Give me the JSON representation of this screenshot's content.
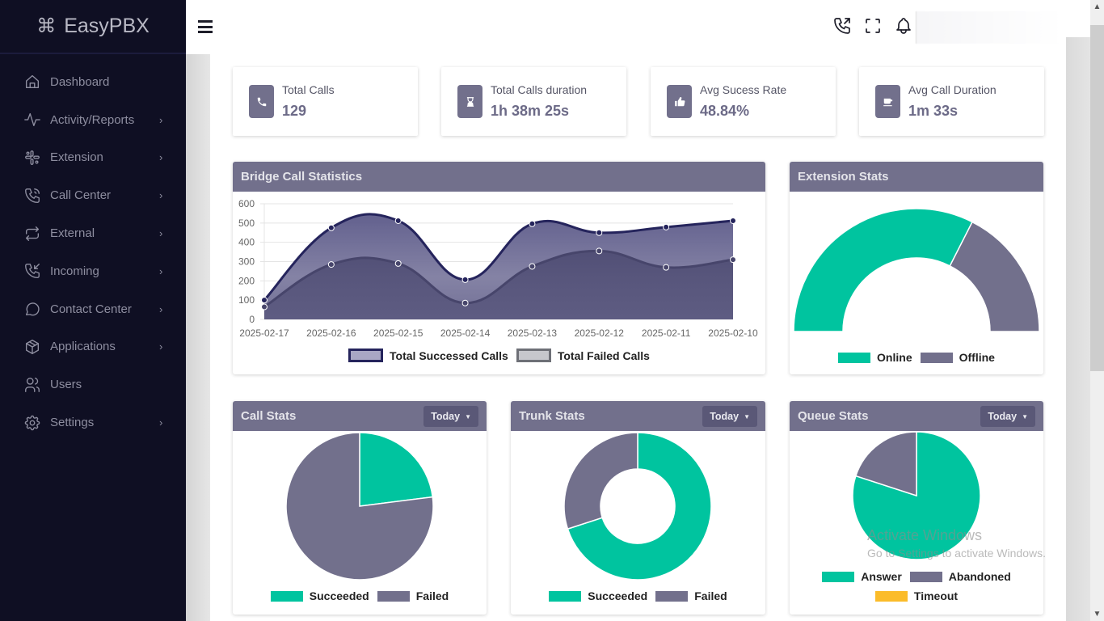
{
  "app": {
    "brand": "EasyPBX",
    "brand_icon": "command-icon"
  },
  "sidebar": {
    "items": [
      {
        "label": "Dashboard",
        "icon": "home-icon",
        "has_children": false
      },
      {
        "label": "Activity/Reports",
        "icon": "activity-icon",
        "has_children": true
      },
      {
        "label": "Extension",
        "icon": "extension-icon",
        "has_children": true
      },
      {
        "label": "Call Center",
        "icon": "phone-ringing-icon",
        "has_children": true
      },
      {
        "label": "External",
        "icon": "repeat-icon",
        "has_children": true
      },
      {
        "label": "Incoming",
        "icon": "phone-incoming-icon",
        "has_children": true
      },
      {
        "label": "Contact Center",
        "icon": "chat-bubble-icon",
        "has_children": true
      },
      {
        "label": "Applications",
        "icon": "box-icon",
        "has_children": true
      },
      {
        "label": "Users",
        "icon": "users-icon",
        "has_children": false
      },
      {
        "label": "Settings",
        "icon": "gear-icon",
        "has_children": true
      }
    ],
    "chevron": "›"
  },
  "topbar": {
    "icons": [
      "phone-outgoing-icon",
      "fullscreen-icon",
      "bell-icon"
    ]
  },
  "stats": [
    {
      "label": "Total Calls",
      "value": "129",
      "icon": "phone-icon"
    },
    {
      "label": "Total Calls duration",
      "value": "1h 38m 25s",
      "icon": "hourglass-icon"
    },
    {
      "label": "Avg Sucess Rate",
      "value": "48.84%",
      "icon": "thumbs-up-icon"
    },
    {
      "label": "Avg Call Duration",
      "value": "1m 33s",
      "icon": "coffee-icon"
    }
  ],
  "colors": {
    "accent": "#72708c",
    "green": "#00c49f",
    "slate": "#72708c",
    "yellow": "#fbbc2a",
    "line_dark": "#25245c"
  },
  "dropdown_label": "Today",
  "chart_data": [
    {
      "id": "bridge",
      "type": "area",
      "title": "Bridge Call Statistics",
      "categories": [
        "2025-02-17",
        "2025-02-16",
        "2025-02-15",
        "2025-02-14",
        "2025-02-13",
        "2025-02-12",
        "2025-02-11",
        "2025-02-10"
      ],
      "series": [
        {
          "name": "Total Successed Calls",
          "values": [
            100,
            475,
            512,
            206,
            496,
            450,
            479,
            512
          ]
        },
        {
          "name": "Total Failed Calls",
          "values": [
            65,
            285,
            290,
            85,
            275,
            355,
            270,
            310
          ]
        }
      ],
      "yticks": [
        "600",
        "500",
        "400",
        "300",
        "200",
        "100",
        "0"
      ],
      "ylim": [
        0,
        600
      ],
      "grid": true,
      "legend": "bottom"
    },
    {
      "id": "extension",
      "type": "pie",
      "variant": "half-doughnut",
      "title": "Extension Stats",
      "labels": [
        "Online",
        "Offline"
      ],
      "values": [
        65,
        35
      ],
      "legend": "bottom"
    },
    {
      "id": "call",
      "type": "pie",
      "title": "Call Stats",
      "labels": [
        "Succeeded",
        "Failed"
      ],
      "values": [
        23,
        77
      ],
      "legend": "bottom"
    },
    {
      "id": "trunk",
      "type": "pie",
      "variant": "doughnut",
      "title": "Trunk Stats",
      "labels": [
        "Succeeded",
        "Failed"
      ],
      "values": [
        70,
        30
      ],
      "legend": "bottom"
    },
    {
      "id": "queue",
      "type": "pie",
      "title": "Queue Stats",
      "labels": [
        "Answer",
        "Abandoned",
        "Timeout"
      ],
      "values": [
        80,
        20,
        0
      ],
      "legend": "bottom"
    }
  ],
  "watermark": {
    "line1": "Activate Windows",
    "line2": "Go to Settings to activate Windows."
  }
}
